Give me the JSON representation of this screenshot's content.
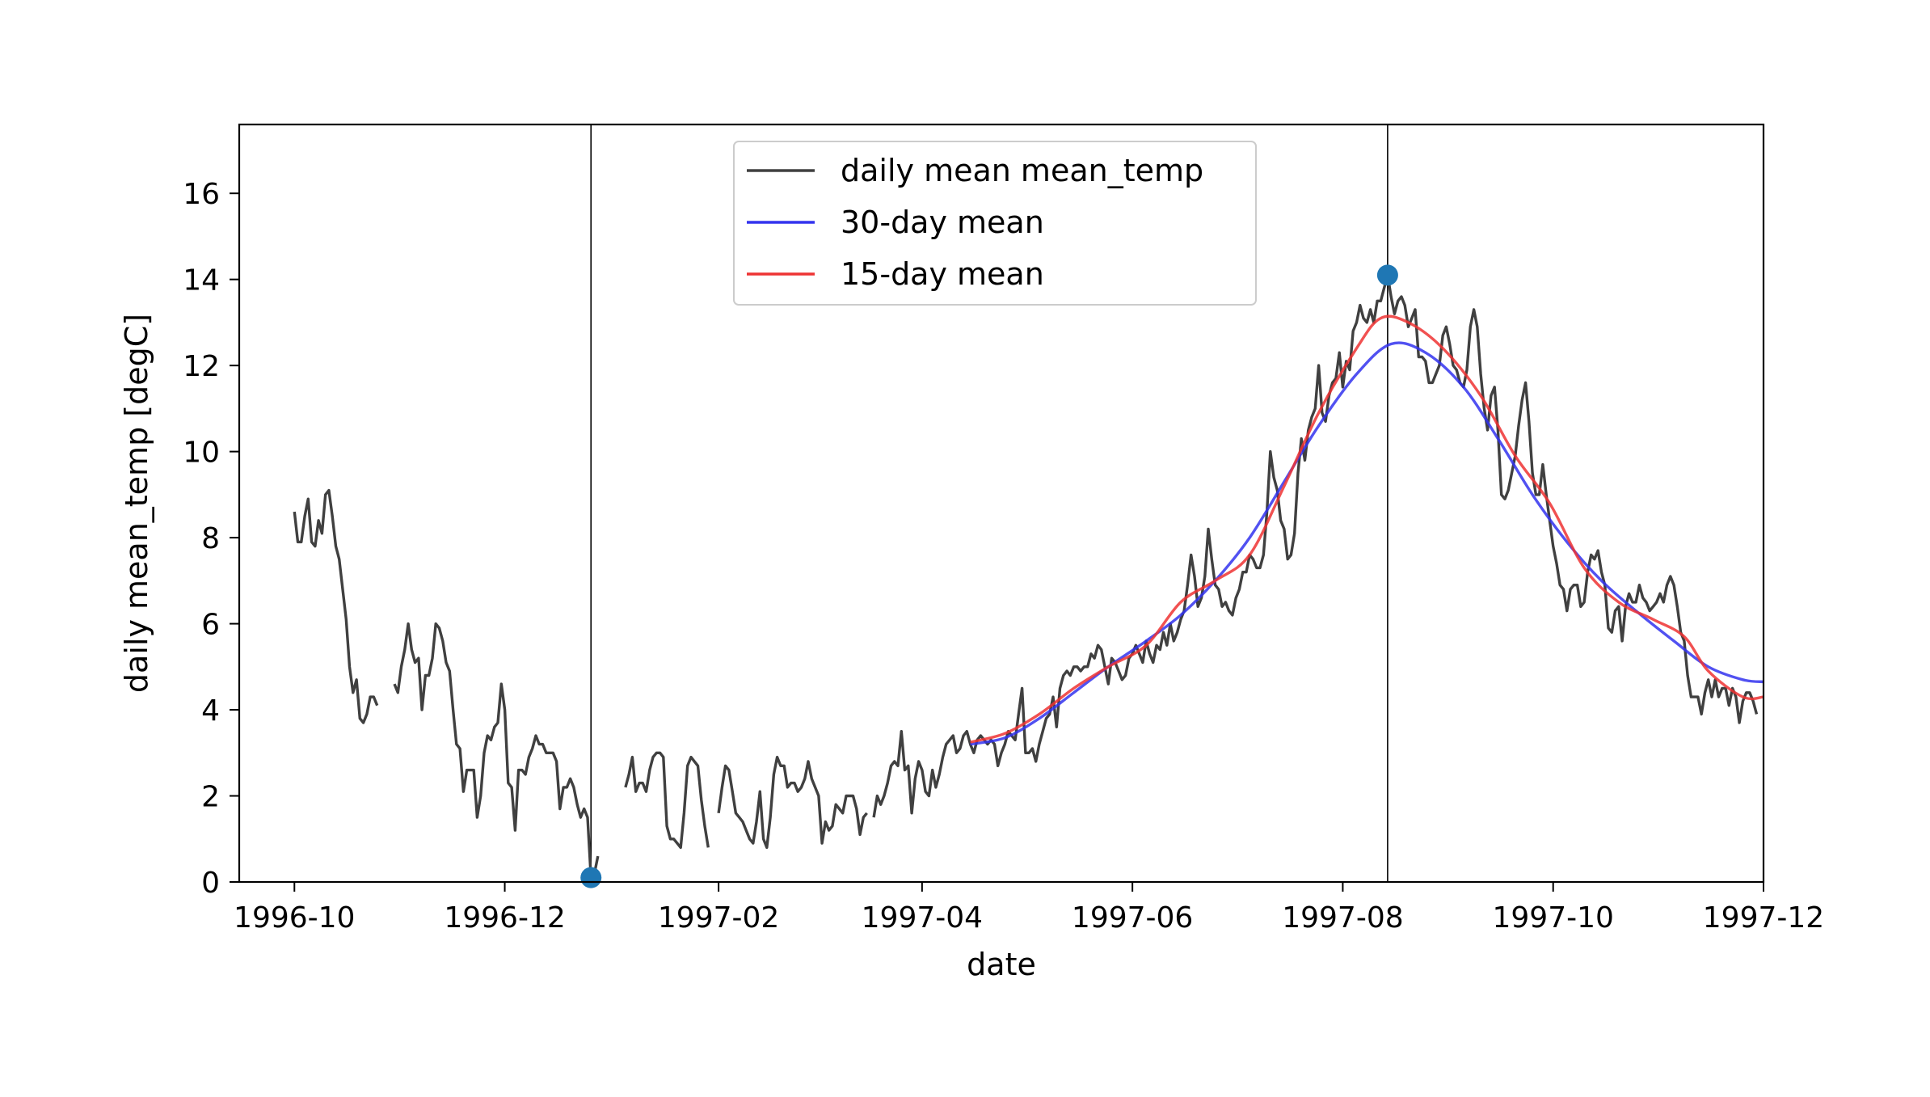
{
  "chart_data": {
    "type": "line",
    "title": "",
    "xlabel": "date",
    "ylabel": "daily mean_temp [degC]",
    "xlim": [
      "1996-09-15",
      "1997-12-01"
    ],
    "ylim": [
      0,
      17.6
    ],
    "grid": false,
    "legend_position": "top-center",
    "x_ticks": [
      {
        "date": "1996-10-01",
        "label": "1996-10"
      },
      {
        "date": "1996-12-01",
        "label": "1996-12"
      },
      {
        "date": "1997-02-01",
        "label": "1997-02"
      },
      {
        "date": "1997-04-01",
        "label": "1997-04"
      },
      {
        "date": "1997-06-01",
        "label": "1997-06"
      },
      {
        "date": "1997-08-01",
        "label": "1997-08"
      },
      {
        "date": "1997-10-01",
        "label": "1997-10"
      },
      {
        "date": "1997-12-01",
        "label": "1997-12"
      }
    ],
    "y_ticks": [
      0,
      2,
      4,
      6,
      8,
      10,
      12,
      14,
      16
    ],
    "vertical_lines": [
      "1996-12-26",
      "1997-08-14"
    ],
    "markers": [
      {
        "date": "1996-12-26",
        "value": 0.1,
        "color": "#1f77b4"
      },
      {
        "date": "1997-08-14",
        "value": 14.1,
        "color": "#1f77b4"
      }
    ],
    "series": [
      {
        "name": "daily mean mean_temp",
        "color": "#404040",
        "segments": [
          {
            "start": "1996-10-01",
            "values": [
              8.6,
              7.9,
              7.9,
              8.5,
              8.9,
              7.9,
              7.8,
              8.4,
              8.1,
              9.0,
              9.1,
              8.5,
              7.8,
              7.5,
              6.8,
              6.1,
              5.0,
              4.4,
              4.7,
              3.8,
              3.7,
              3.9,
              4.3,
              4.3,
              4.1
            ]
          },
          {
            "start": "1996-10-30",
            "values": [
              4.6,
              4.4,
              5.0,
              5.4,
              6.0,
              5.4,
              5.1,
              5.2,
              4.0,
              4.8,
              4.8,
              5.2,
              6.0,
              5.9,
              5.6,
              5.1,
              4.9,
              4.0,
              3.2,
              3.1,
              2.1,
              2.6,
              2.6,
              2.6,
              1.5,
              2.0,
              3.0,
              3.4,
              3.3,
              3.6,
              3.7,
              4.6,
              4.0,
              2.3,
              2.2,
              1.2,
              2.6,
              2.6,
              2.5,
              2.9,
              3.1,
              3.4,
              3.2,
              3.2,
              3.0,
              3.0,
              3.0,
              2.8,
              1.7,
              2.2,
              2.2,
              2.4,
              2.2,
              1.8,
              1.5,
              1.7,
              1.5,
              0.1,
              0.2,
              0.6
            ]
          },
          {
            "start": "1997-01-05",
            "values": [
              2.2,
              2.5,
              2.9,
              2.1,
              2.3,
              2.3,
              2.1,
              2.6,
              2.9,
              3.0,
              3.0,
              2.9,
              1.3,
              1.0,
              1.0,
              0.9,
              0.8,
              1.6,
              2.7,
              2.9,
              2.8,
              2.7,
              1.9,
              1.3,
              0.8
            ]
          },
          {
            "start": "1997-02-01",
            "values": [
              1.6,
              2.2,
              2.7,
              2.6,
              2.1,
              1.6,
              1.5,
              1.4,
              1.2,
              1.0,
              0.9,
              1.4,
              2.1,
              1.0,
              0.8,
              1.5,
              2.5,
              2.9,
              2.7,
              2.7,
              2.2,
              2.3,
              2.3,
              2.1,
              2.2,
              2.4,
              2.8,
              2.4,
              2.2,
              2.0,
              0.9,
              1.4,
              1.2,
              1.3,
              1.8,
              1.7,
              1.6,
              2.0,
              2.0,
              2.0,
              1.7,
              1.1,
              1.5,
              1.6
            ]
          },
          {
            "start": "1997-03-18",
            "values": [
              1.5,
              2.0,
              1.8,
              2.0,
              2.3,
              2.7,
              2.8,
              2.7,
              3.5,
              2.6,
              2.7,
              1.6,
              2.4,
              2.8,
              2.6,
              2.1,
              2.0,
              2.6,
              2.2,
              2.5,
              2.9,
              3.2,
              3.3,
              3.4,
              3.0,
              3.1,
              3.4,
              3.5,
              3.2,
              3.0,
              3.3,
              3.4,
              3.3,
              3.2,
              3.3,
              3.2,
              2.7,
              3.0,
              3.2,
              3.5,
              3.4,
              3.3,
              3.9,
              4.5,
              3.0,
              3.0,
              3.1,
              2.8,
              3.2,
              3.5,
              3.8,
              3.9,
              4.3,
              3.6,
              4.5,
              4.8,
              4.9,
              4.8,
              5.0,
              5.0,
              4.9,
              5.0,
              5.0,
              5.3,
              5.2,
              5.5,
              5.4,
              5.0,
              4.6,
              5.2,
              5.1,
              4.9,
              4.7,
              4.8,
              5.2,
              5.3,
              5.5,
              5.3,
              5.1,
              5.6,
              5.3,
              5.1,
              5.5,
              5.4,
              5.8,
              5.5,
              6.0,
              5.6,
              5.8,
              6.1,
              6.3,
              6.9,
              7.6,
              7.1,
              6.4,
              6.6,
              7.1,
              8.2,
              7.5,
              6.9,
              6.8,
              6.4,
              6.5,
              6.3,
              6.2,
              6.6,
              6.8,
              7.2,
              7.2,
              7.6,
              7.5,
              7.3,
              7.3,
              7.6,
              8.6,
              10.0,
              9.4,
              9.1,
              8.4,
              8.2,
              7.5,
              7.6,
              8.1,
              9.5,
              10.3,
              9.8,
              10.5,
              10.8,
              11.0,
              12.0,
              10.9,
              10.7,
              11.3,
              11.6,
              11.7,
              12.3,
              11.5,
              12.1,
              11.9,
              12.8,
              13.0,
              13.4,
              13.1,
              13.0,
              13.3,
              13.0,
              13.5,
              13.5,
              13.8,
              14.1,
              13.6,
              13.2,
              13.5,
              13.6,
              13.4,
              12.9,
              13.1,
              13.3,
              12.2,
              12.2,
              12.1,
              11.6,
              11.6,
              11.8,
              12.0,
              12.7,
              12.9,
              12.5,
              12.0,
              11.9,
              11.6,
              11.5,
              11.9,
              12.9,
              13.3,
              12.9,
              11.8,
              11.0,
              10.5,
              11.3,
              11.5,
              10.5,
              9.0,
              8.9,
              9.1,
              9.5,
              9.9,
              10.6,
              11.2,
              11.6,
              10.7,
              9.5,
              9.0,
              9.0,
              9.7,
              9.0,
              8.4,
              7.8,
              7.4,
              6.9,
              6.8,
              6.3,
              6.8,
              6.9,
              6.9,
              6.4,
              6.5,
              7.2,
              7.6,
              7.5,
              7.7,
              7.2,
              6.9,
              5.9,
              5.8,
              6.3,
              6.4,
              5.6,
              6.4,
              6.7,
              6.5,
              6.5,
              6.9,
              6.6,
              6.5,
              6.3,
              6.4,
              6.5,
              6.7,
              6.5,
              6.9,
              7.1,
              6.9,
              6.4,
              5.8,
              5.6,
              4.8,
              4.3,
              4.3,
              4.3,
              3.9,
              4.4,
              4.7,
              4.3,
              4.7,
              4.3,
              4.5,
              4.5,
              4.1,
              4.5,
              4.3,
              3.7,
              4.2,
              4.4,
              4.4,
              4.2,
              3.9
            ]
          }
        ]
      },
      {
        "name": "30-day mean",
        "color": "#3333ee",
        "points": [
          {
            "date": "1997-04-15",
            "value": 3.2
          },
          {
            "date": "1997-04-25",
            "value": 3.35
          },
          {
            "date": "1997-05-05",
            "value": 3.8
          },
          {
            "date": "1997-05-15",
            "value": 4.4
          },
          {
            "date": "1997-05-25",
            "value": 5.0
          },
          {
            "date": "1997-06-05",
            "value": 5.6
          },
          {
            "date": "1997-06-15",
            "value": 6.2
          },
          {
            "date": "1997-06-25",
            "value": 7.0
          },
          {
            "date": "1997-07-05",
            "value": 8.0
          },
          {
            "date": "1997-07-15",
            "value": 9.3
          },
          {
            "date": "1997-07-25",
            "value": 10.6
          },
          {
            "date": "1997-08-05",
            "value": 11.8
          },
          {
            "date": "1997-08-15",
            "value": 12.5
          },
          {
            "date": "1997-08-25",
            "value": 12.3
          },
          {
            "date": "1997-09-05",
            "value": 11.5
          },
          {
            "date": "1997-09-15",
            "value": 10.3
          },
          {
            "date": "1997-09-25",
            "value": 9.0
          },
          {
            "date": "1997-10-05",
            "value": 7.9
          },
          {
            "date": "1997-10-15",
            "value": 7.0
          },
          {
            "date": "1997-10-25",
            "value": 6.3
          },
          {
            "date": "1997-11-05",
            "value": 5.6
          },
          {
            "date": "1997-11-15",
            "value": 5.0
          },
          {
            "date": "1997-11-25",
            "value": 4.7
          },
          {
            "date": "1997-12-01",
            "value": 4.65
          }
        ]
      },
      {
        "name": "15-day mean",
        "color": "#ee3333",
        "points": [
          {
            "date": "1997-04-15",
            "value": 3.25
          },
          {
            "date": "1997-04-25",
            "value": 3.45
          },
          {
            "date": "1997-05-05",
            "value": 3.9
          },
          {
            "date": "1997-05-15",
            "value": 4.5
          },
          {
            "date": "1997-05-25",
            "value": 5.0
          },
          {
            "date": "1997-06-05",
            "value": 5.5
          },
          {
            "date": "1997-06-15",
            "value": 6.5
          },
          {
            "date": "1997-06-25",
            "value": 7.0
          },
          {
            "date": "1997-07-05",
            "value": 7.6
          },
          {
            "date": "1997-07-15",
            "value": 9.2
          },
          {
            "date": "1997-07-25",
            "value": 10.9
          },
          {
            "date": "1997-08-05",
            "value": 12.4
          },
          {
            "date": "1997-08-12",
            "value": 13.1
          },
          {
            "date": "1997-08-20",
            "value": 13.0
          },
          {
            "date": "1997-08-30",
            "value": 12.4
          },
          {
            "date": "1997-09-10",
            "value": 11.3
          },
          {
            "date": "1997-09-20",
            "value": 9.9
          },
          {
            "date": "1997-09-30",
            "value": 8.8
          },
          {
            "date": "1997-10-10",
            "value": 7.3
          },
          {
            "date": "1997-10-20",
            "value": 6.5
          },
          {
            "date": "1997-10-30",
            "value": 6.1
          },
          {
            "date": "1997-11-08",
            "value": 5.7
          },
          {
            "date": "1997-11-15",
            "value": 4.9
          },
          {
            "date": "1997-11-25",
            "value": 4.3
          },
          {
            "date": "1997-12-01",
            "value": 4.3
          }
        ]
      }
    ]
  }
}
